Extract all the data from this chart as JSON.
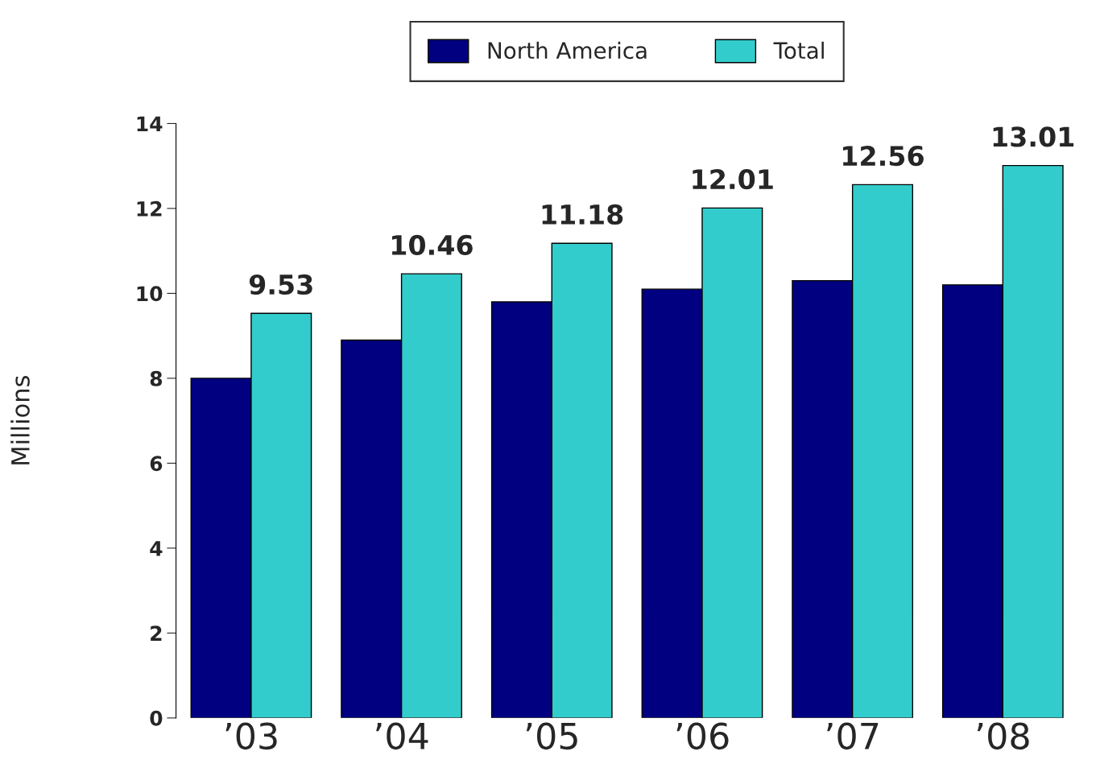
{
  "chart_data": {
    "type": "bar",
    "ylabel": "Millions",
    "categories": [
      "’03",
      "’04",
      "’05",
      "’06",
      "’07",
      "’08"
    ],
    "series": [
      {
        "name": "North America",
        "color": "#000080",
        "values": [
          8.0,
          8.9,
          9.8,
          10.1,
          10.3,
          10.2
        ]
      },
      {
        "name": "Total",
        "color": "#33cccc",
        "values": [
          9.53,
          10.46,
          11.18,
          12.01,
          12.56,
          13.01
        ],
        "value_labels": [
          "9.53",
          "10.46",
          "11.18",
          "12.01",
          "12.56",
          "13.01"
        ]
      }
    ],
    "ylim": [
      0,
      14
    ],
    "yticks": [
      0,
      2,
      4,
      6,
      8,
      10,
      12,
      14
    ],
    "grid": false,
    "legend": "top"
  }
}
